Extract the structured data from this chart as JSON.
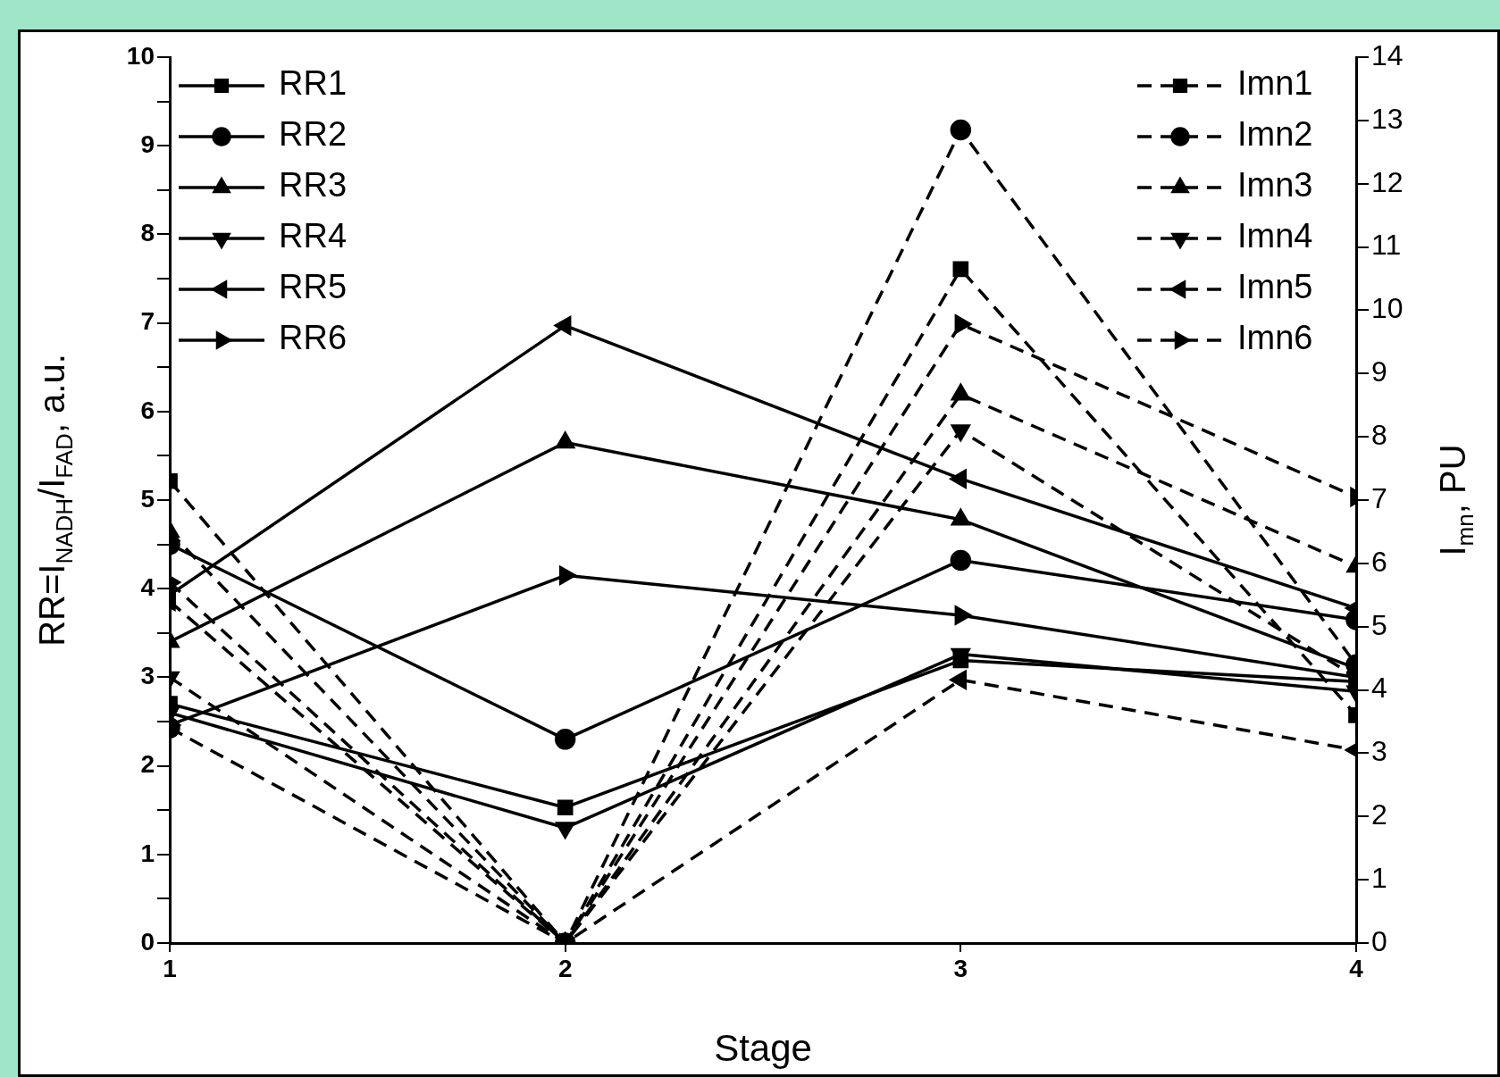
{
  "chart_data": {
    "type": "line",
    "xlabel": "Stage",
    "ylabel": "RR=I$_{NADH}$/I$_{FAD}$, a.u.",
    "y2label": "I$_{mn}$, PU",
    "x": [
      1,
      2,
      3,
      4
    ],
    "xlim": [
      1,
      4
    ],
    "xticks": [
      1,
      2,
      3,
      4
    ],
    "ylim": [
      0,
      10
    ],
    "yticks": [
      0,
      {
        "value": 0.5,
        "label": null
      },
      1,
      {
        "value": 1.5,
        "label": null
      },
      2,
      {
        "value": 2.5,
        "label": null
      },
      3,
      {
        "value": 3.5,
        "label": null
      },
      4,
      {
        "value": 4.5,
        "label": null
      },
      5,
      {
        "value": 5.5,
        "label": null
      },
      6,
      {
        "value": 6.5,
        "label": null
      },
      7,
      {
        "value": 7.5,
        "label": null
      },
      8,
      {
        "value": 8.5,
        "label": null
      },
      9,
      {
        "value": 9.5,
        "label": null
      },
      10
    ],
    "y2lim": [
      0,
      14
    ],
    "y2ticks": [
      0,
      1,
      2,
      3,
      4,
      5,
      6,
      7,
      8,
      9,
      10,
      11,
      12,
      13,
      14
    ],
    "grid": false,
    "legend": "top left",
    "series": [
      {
        "name": "RR1",
        "color": "#000000",
        "marker": "square",
        "line_style": "solid",
        "values": [
          2.7,
          1.53,
          3.19,
          2.95
        ]
      },
      {
        "name": "RR2",
        "color": "#000000",
        "marker": "circle",
        "line_style": "solid",
        "values": [
          4.5,
          2.3,
          4.32,
          3.65
        ]
      },
      {
        "name": "RR3",
        "color": "#000000",
        "marker": "triangle",
        "line_style": "solid",
        "values": [
          3.4,
          5.65,
          4.78,
          3.1
        ]
      },
      {
        "name": "RR4",
        "color": "#000000",
        "marker": "triangle-down",
        "line_style": "solid",
        "values": [
          2.6,
          1.3,
          3.26,
          2.84
        ]
      },
      {
        "name": "RR5",
        "color": "#000000",
        "marker": "triangle-left",
        "line_style": "solid",
        "values": [
          3.93,
          6.97,
          5.24,
          3.78
        ]
      },
      {
        "name": "RR6",
        "color": "#000000",
        "marker": "triangle-right",
        "line_style": "solid",
        "values": [
          2.46,
          4.15,
          3.7,
          3.0
        ]
      },
      {
        "name": "Imn1",
        "color": "#000000",
        "marker": "square",
        "line_style": "dashed",
        "axis": "y2",
        "values": [
          7.3,
          0,
          10.65,
          3.6
        ]
      },
      {
        "name": "Imn2",
        "color": "#000000",
        "marker": "circle",
        "line_style": "dashed",
        "axis": "y2",
        "values": [
          3.4,
          0,
          12.85,
          4.4
        ]
      },
      {
        "name": "Imn3",
        "color": "#000000",
        "marker": "triangle",
        "line_style": "dashed",
        "axis": "y2",
        "values": [
          6.5,
          0,
          8.67,
          5.95
        ]
      },
      {
        "name": "Imn4",
        "color": "#000000",
        "marker": "triangle-down",
        "line_style": "dashed",
        "axis": "y2",
        "values": [
          4.2,
          0,
          8.1,
          4.2
        ]
      },
      {
        "name": "Imn5",
        "color": "#000000",
        "marker": "triangle-left",
        "line_style": "dashed",
        "axis": "y2",
        "values": [
          5.4,
          0,
          4.16,
          3.05
        ]
      },
      {
        "name": "Imn6",
        "color": "#000000",
        "marker": "triangle-right",
        "line_style": "dashed",
        "axis": "y2",
        "values": [
          5.7,
          0,
          9.78,
          7.05
        ]
      }
    ]
  }
}
